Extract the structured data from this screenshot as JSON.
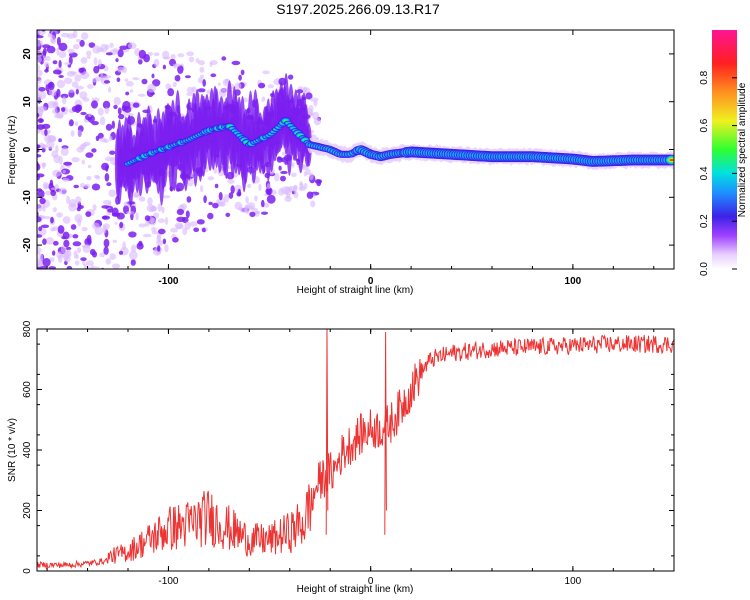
{
  "figure_title": "S197.2025.266.09.13.R17",
  "colors": {
    "snr_line": "#ee3333",
    "axes": "#000000",
    "colormap": [
      "#f0e0ff",
      "#c9a0ff",
      "#7a1ef0",
      "#3b22e6",
      "#1e90ff",
      "#00e0e0",
      "#3cf030",
      "#f0f020",
      "#ff9020",
      "#ff2020",
      "#ff1493"
    ]
  },
  "chart_data": [
    {
      "type": "heatmap",
      "title": "",
      "xlabel": "Height of straight line (km)",
      "ylabel": "Frequency (Hz)",
      "xlim": [
        -165,
        150
      ],
      "ylim": [
        -25,
        25
      ],
      "x_ticks": [
        "-100",
        "0",
        "100"
      ],
      "y_ticks": [
        "-20",
        "-10",
        "0",
        "10",
        "20"
      ],
      "ridge": {
        "x": [
          -120,
          -110,
          -100,
          -90,
          -80,
          -70,
          -60,
          -50,
          -42,
          -35,
          -30,
          -25,
          -20,
          -15,
          -10,
          -5,
          0,
          5,
          10,
          20,
          40,
          60,
          80,
          100,
          110,
          130,
          150
        ],
        "frequency": [
          -3,
          -1,
          0.5,
          2,
          4,
          5,
          1,
          3,
          6,
          3,
          1,
          0.5,
          0,
          -1,
          -1,
          0,
          -1,
          -1.5,
          -1,
          -0.5,
          -1,
          -1.5,
          -1.5,
          -2,
          -2.5,
          -2.2,
          -2.2
        ]
      },
      "colorbar": {
        "label": "Normalized spectral amplitude",
        "range": [
          0,
          1
        ],
        "ticks": [
          "0.0",
          "0.2",
          "0.4",
          "0.6",
          "0.8"
        ]
      }
    },
    {
      "type": "line",
      "title": "",
      "xlabel": "Height of straight line (km)",
      "ylabel": "SNR (10 * v/v)",
      "xlim": [
        -165,
        150
      ],
      "ylim": [
        0,
        800
      ],
      "x_ticks": [
        "-100",
        "0",
        "100"
      ],
      "y_ticks": [
        "0",
        "200",
        "400",
        "600",
        "800"
      ],
      "series": [
        {
          "name": "SNR",
          "x": [
            -165,
            -150,
            -140,
            -130,
            -120,
            -110,
            -100,
            -90,
            -80,
            -70,
            -60,
            -50,
            -40,
            -32,
            -27,
            -22,
            -18,
            -15,
            -10,
            -5,
            0,
            5,
            10,
            15,
            20,
            25,
            30,
            40,
            60,
            80,
            100,
            120,
            140,
            150
          ],
          "y": [
            20,
            20,
            25,
            35,
            50,
            80,
            110,
            120,
            140,
            110,
            80,
            80,
            100,
            130,
            280,
            320,
            330,
            380,
            420,
            450,
            470,
            470,
            490,
            540,
            600,
            660,
            700,
            720,
            735,
            740,
            745,
            750,
            750,
            750
          ]
        }
      ],
      "annotations": [
        {
          "x": -22,
          "y": 800,
          "text": ""
        },
        {
          "x": 7,
          "y": 790,
          "text": ""
        }
      ]
    }
  ]
}
